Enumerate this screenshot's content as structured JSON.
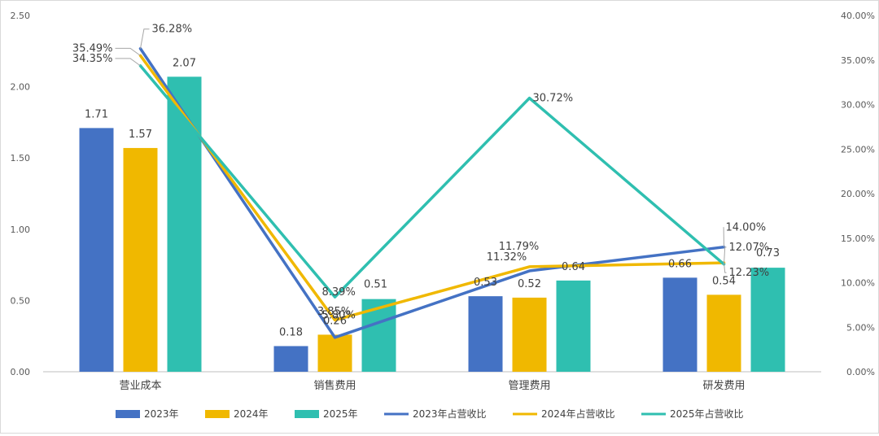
{
  "chart_data": {
    "type": "bar+line",
    "title": "",
    "categories": [
      "营业成本",
      "销售费用",
      "管理费用",
      "研发费用"
    ],
    "bar_series": [
      {
        "name": "2023年",
        "values": [
          1.71,
          0.18,
          0.53,
          0.66
        ],
        "labels": [
          "1.71",
          "0.18",
          "0.53",
          "0.66"
        ],
        "color": "#4472C4"
      },
      {
        "name": "2024年",
        "values": [
          1.57,
          0.26,
          0.52,
          0.54
        ],
        "labels": [
          "1.57",
          "0.26",
          "0.52",
          "0.54"
        ],
        "color": "#F0B800"
      },
      {
        "name": "2025年",
        "values": [
          2.07,
          0.51,
          0.64,
          0.73
        ],
        "labels": [
          "2.07",
          "0.51",
          "0.64",
          "0.73"
        ],
        "color": "#2FBFB0"
      }
    ],
    "line_series": [
      {
        "name": "2023年占营收比",
        "values": [
          36.28,
          3.85,
          11.32,
          14.0
        ],
        "labels": [
          "36.28%",
          "3.85%",
          "11.32%",
          "14.00%"
        ],
        "color": "#4472C4"
      },
      {
        "name": "2024年占营收比",
        "values": [
          35.49,
          5.8,
          11.79,
          12.23
        ],
        "labels": [
          "35.49%",
          "5.80%",
          "11.79%",
          "12.23%"
        ],
        "color": "#F0B800"
      },
      {
        "name": "2025年占营收比",
        "values": [
          34.35,
          8.39,
          30.72,
          12.07
        ],
        "labels": [
          "34.35%",
          "8.39%",
          "30.72%",
          "12.07%"
        ],
        "color": "#2FBFB0"
      }
    ],
    "y_left": {
      "min": 0,
      "max": 2.5,
      "ticks": [
        "0.00",
        "0.50",
        "1.00",
        "1.50",
        "2.00",
        "2.50"
      ]
    },
    "y_right": {
      "min": 0,
      "max": 40,
      "ticks": [
        "0.00%",
        "5.00%",
        "10.00%",
        "15.00%",
        "20.00%",
        "25.00%",
        "30.00%",
        "35.00%",
        "40.00%"
      ]
    },
    "legend": [
      "2023年",
      "2024年",
      "2025年",
      "2023年占营收比",
      "2024年占营收比",
      "2025年占营收比"
    ],
    "legend_position": "bottom",
    "grid": false
  }
}
